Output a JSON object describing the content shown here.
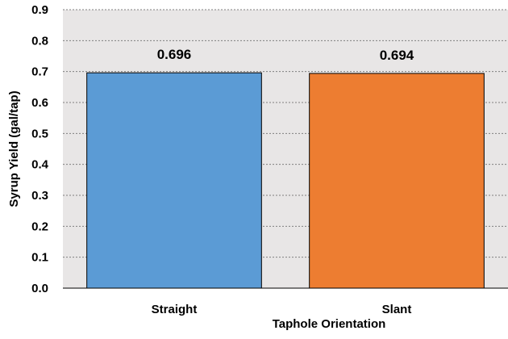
{
  "chart_data": {
    "type": "bar",
    "categories": [
      "Straight",
      "Slant"
    ],
    "values": [
      0.696,
      0.694
    ],
    "data_labels": [
      "0.696",
      "0.694"
    ],
    "colors": [
      "#5b9bd5",
      "#ed7d31"
    ],
    "xlabel": "Taphole Orientation",
    "ylabel": "Syrup Yield (gal/tap)",
    "ylim": [
      0,
      0.9
    ],
    "yticks": [
      0.0,
      0.1,
      0.2,
      0.3,
      0.4,
      0.5,
      0.6,
      0.7,
      0.8,
      0.9
    ],
    "ytick_labels": [
      "0.0",
      "0.1",
      "0.2",
      "0.3",
      "0.4",
      "0.5",
      "0.6",
      "0.7",
      "0.8",
      "0.9"
    ],
    "grid": true,
    "plot_background": "#e8e6e6",
    "legend": "none"
  }
}
